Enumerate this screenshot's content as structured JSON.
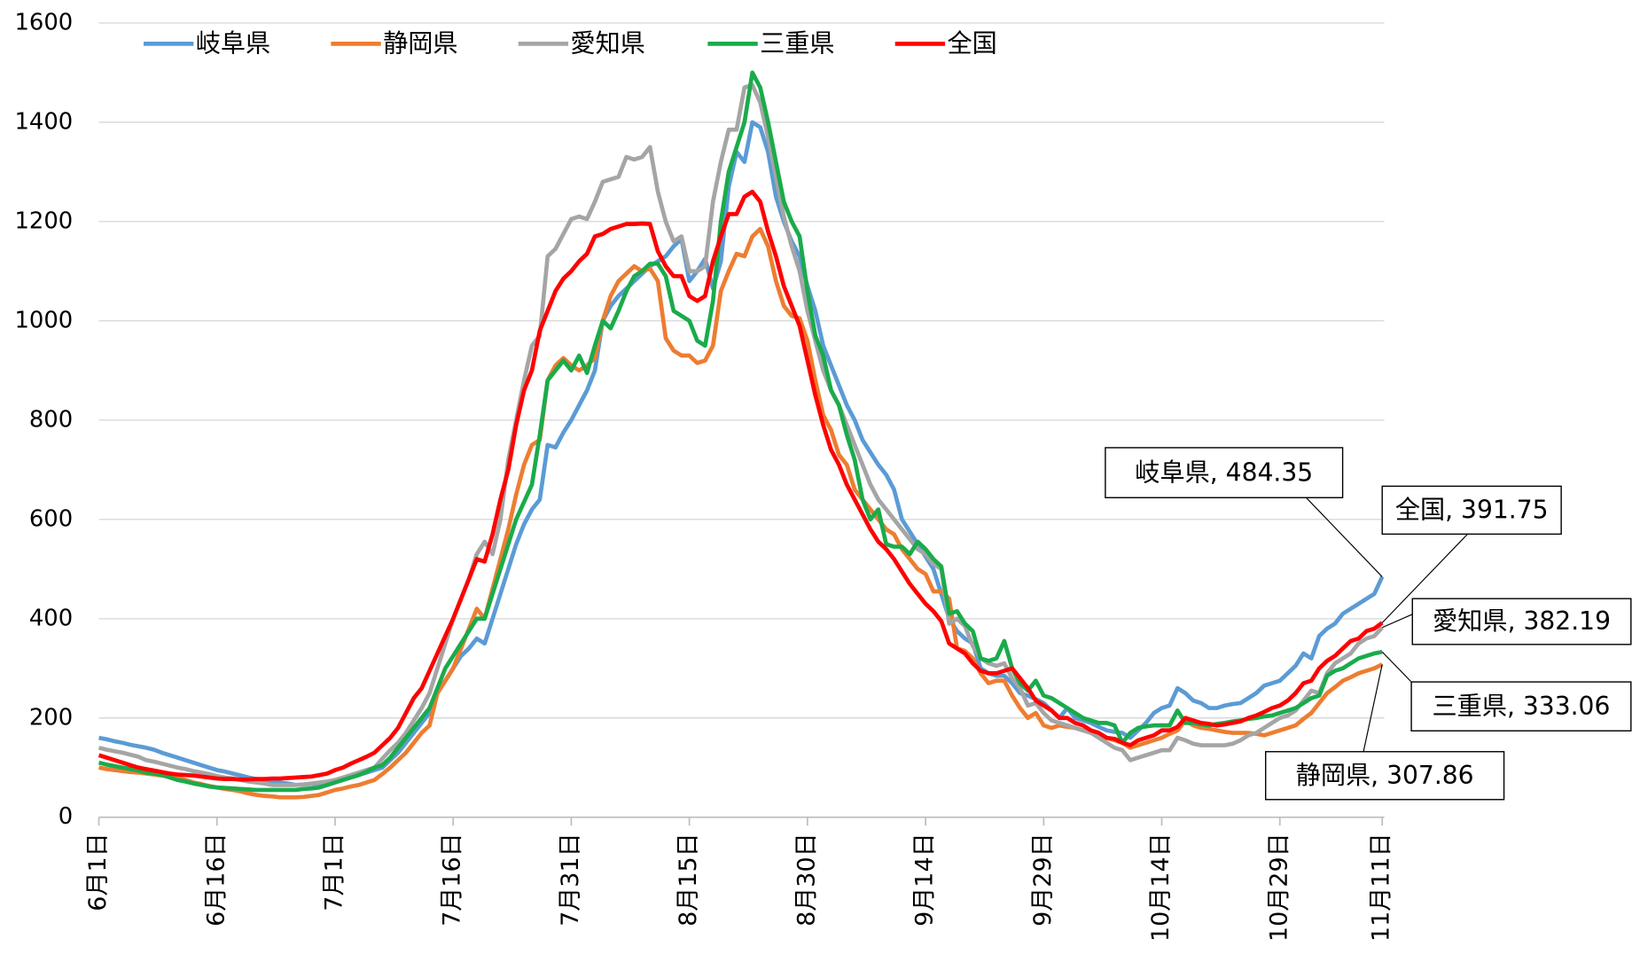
{
  "chart_data": {
    "type": "line",
    "categories": [
      "6月1日",
      null,
      null,
      null,
      null,
      null,
      null,
      null,
      null,
      null,
      null,
      null,
      null,
      null,
      null,
      "6月16日",
      null,
      null,
      null,
      null,
      null,
      null,
      null,
      null,
      null,
      null,
      null,
      null,
      null,
      null,
      "7月1日",
      null,
      null,
      null,
      null,
      null,
      null,
      null,
      null,
      null,
      null,
      null,
      null,
      null,
      null,
      "7月16日",
      null,
      null,
      null,
      null,
      null,
      null,
      null,
      null,
      null,
      null,
      null,
      null,
      null,
      null,
      "7月31日",
      null,
      null,
      null,
      null,
      null,
      null,
      null,
      null,
      null,
      null,
      null,
      null,
      null,
      null,
      "8月15日",
      null,
      null,
      null,
      null,
      null,
      null,
      null,
      null,
      null,
      null,
      null,
      null,
      null,
      null,
      "8月30日",
      null,
      null,
      null,
      null,
      null,
      null,
      null,
      null,
      null,
      null,
      null,
      null,
      null,
      null,
      "9月14日",
      null,
      null,
      null,
      null,
      null,
      null,
      null,
      null,
      null,
      null,
      null,
      null,
      null,
      null,
      "9月29日",
      null,
      null,
      null,
      null,
      null,
      null,
      null,
      null,
      null,
      null,
      null,
      null,
      null,
      null,
      "10月14日",
      null,
      null,
      null,
      null,
      null,
      null,
      null,
      null,
      null,
      null,
      null,
      null,
      null,
      null,
      "10月29日",
      null,
      null,
      null,
      null,
      null,
      null,
      null,
      null,
      null,
      null,
      null,
      null,
      "11月11日"
    ],
    "series": [
      {
        "name": "岐阜県",
        "color": "#5b9bd5",
        "values": [
          160,
          157,
          153,
          150,
          146,
          143,
          140,
          136,
          130,
          125,
          120,
          115,
          110,
          105,
          100,
          95,
          92,
          88,
          84,
          80,
          77,
          74,
          72,
          70,
          68,
          65,
          66,
          67,
          68,
          70,
          72,
          76,
          80,
          85,
          90,
          95,
          100,
          115,
          130,
          150,
          170,
          190,
          210,
          250,
          275,
          300,
          325,
          340,
          360,
          350,
          400,
          450,
          500,
          550,
          590,
          620,
          640,
          750,
          745,
          775,
          800,
          830,
          860,
          900,
          1000,
          1030,
          1050,
          1065,
          1080,
          1095,
          1110,
          1120,
          1130,
          1150,
          1165,
          1080,
          1100,
          1125,
          1065,
          1120,
          1270,
          1340,
          1320,
          1400,
          1390,
          1340,
          1250,
          1200,
          1160,
          1130,
          1070,
          1020,
          950,
          910,
          870,
          830,
          800,
          760,
          735,
          710,
          690,
          660,
          600,
          575,
          550,
          525,
          500,
          450,
          400,
          375,
          360,
          350,
          300,
          290,
          285,
          285,
          270,
          250,
          245,
          238,
          230,
          215,
          200,
          220,
          200,
          195,
          190,
          182,
          175,
          172,
          170,
          160,
          175,
          190,
          210,
          220,
          225,
          260,
          250,
          235,
          230,
          220,
          220,
          225,
          228,
          230,
          240,
          250,
          265,
          270,
          275,
          290,
          305,
          330,
          320,
          365,
          380,
          390,
          410,
          420,
          430,
          440,
          450,
          484.35
        ]
      },
      {
        "name": "静岡県",
        "color": "#ed7d31",
        "values": [
          100,
          97,
          95,
          93,
          91,
          90,
          88,
          86,
          84,
          82,
          80,
          75,
          70,
          67,
          63,
          60,
          57,
          55,
          52,
          48,
          45,
          43,
          42,
          40,
          40,
          40,
          41,
          43,
          45,
          50,
          55,
          58,
          62,
          65,
          70,
          75,
          87,
          100,
          115,
          130,
          150,
          170,
          185,
          250,
          275,
          300,
          340,
          380,
          420,
          400,
          460,
          520,
          580,
          650,
          710,
          750,
          760,
          880,
          910,
          925,
          910,
          900,
          910,
          925,
          1000,
          1050,
          1080,
          1095,
          1110,
          1100,
          1105,
          1080,
          965,
          940,
          930,
          930,
          915,
          920,
          950,
          1060,
          1100,
          1135,
          1130,
          1170,
          1185,
          1150,
          1080,
          1030,
          1010,
          1005,
          960,
          880,
          810,
          780,
          730,
          710,
          660,
          640,
          620,
          600,
          580,
          570,
          540,
          520,
          500,
          490,
          455,
          455,
          440,
          340,
          335,
          320,
          290,
          270,
          275,
          275,
          245,
          220,
          200,
          210,
          185,
          180,
          185,
          182,
          180,
          175,
          170,
          165,
          160,
          155,
          150,
          140,
          145,
          150,
          155,
          160,
          168,
          175,
          195,
          185,
          180,
          178,
          175,
          172,
          170,
          170,
          170,
          168,
          165,
          170,
          175,
          180,
          185,
          198,
          210,
          230,
          250,
          262,
          275,
          282,
          290,
          295,
          300,
          307.86
        ]
      },
      {
        "name": "愛知県",
        "color": "#a5a5a5",
        "values": [
          140,
          136,
          133,
          130,
          126,
          122,
          115,
          112,
          108,
          104,
          100,
          97,
          93,
          90,
          87,
          83,
          80,
          78,
          75,
          72,
          70,
          68,
          65,
          65,
          65,
          65,
          66,
          68,
          70,
          72,
          75,
          80,
          85,
          90,
          95,
          100,
          118,
          135,
          150,
          170,
          195,
          220,
          250,
          300,
          350,
          400,
          440,
          480,
          530,
          555,
          530,
          600,
          720,
          800,
          880,
          950,
          970,
          1130,
          1145,
          1175,
          1205,
          1210,
          1205,
          1240,
          1280,
          1285,
          1290,
          1330,
          1325,
          1330,
          1350,
          1260,
          1200,
          1160,
          1170,
          1100,
          1100,
          1110,
          1240,
          1320,
          1385,
          1385,
          1470,
          1475,
          1440,
          1370,
          1290,
          1210,
          1150,
          1100,
          1020,
          960,
          900,
          860,
          830,
          790,
          750,
          710,
          670,
          640,
          620,
          600,
          580,
          560,
          540,
          530,
          510,
          500,
          390,
          400,
          385,
          345,
          320,
          310,
          305,
          310,
          280,
          260,
          225,
          230,
          210,
          195,
          190,
          185,
          180,
          175,
          170,
          160,
          150,
          140,
          135,
          115,
          120,
          125,
          130,
          135,
          135,
          160,
          155,
          148,
          145,
          145,
          145,
          145,
          148,
          155,
          165,
          170,
          180,
          190,
          200,
          205,
          215,
          235,
          255,
          250,
          290,
          310,
          320,
          330,
          350,
          360,
          365,
          382.19
        ]
      },
      {
        "name": "三重県",
        "color": "#1aab4b",
        "values": [
          110,
          106,
          103,
          100,
          97,
          94,
          90,
          88,
          85,
          80,
          75,
          72,
          68,
          65,
          62,
          60,
          59,
          58,
          57,
          56,
          55,
          55,
          55,
          55,
          55,
          55,
          57,
          58,
          60,
          65,
          70,
          75,
          80,
          85,
          92,
          100,
          105,
          120,
          140,
          160,
          180,
          200,
          220,
          260,
          300,
          325,
          350,
          375,
          400,
          400,
          450,
          500,
          550,
          600,
          635,
          670,
          770,
          880,
          900,
          920,
          900,
          930,
          895,
          950,
          1000,
          985,
          1020,
          1060,
          1090,
          1100,
          1115,
          1115,
          1090,
          1020,
          1010,
          1000,
          960,
          950,
          1040,
          1200,
          1300,
          1350,
          1400,
          1500,
          1470,
          1400,
          1320,
          1240,
          1200,
          1170,
          1060,
          970,
          930,
          860,
          830,
          770,
          720,
          640,
          600,
          620,
          550,
          545,
          545,
          530,
          555,
          540,
          520,
          505,
          410,
          415,
          390,
          375,
          320,
          315,
          320,
          355,
          300,
          270,
          255,
          275,
          245,
          240,
          230,
          220,
          210,
          200,
          195,
          190,
          190,
          185,
          150,
          170,
          180,
          183,
          185,
          185,
          185,
          215,
          190,
          190,
          187,
          185,
          188,
          190,
          193,
          195,
          198,
          200,
          203,
          205,
          210,
          215,
          220,
          230,
          240,
          245,
          285,
          295,
          300,
          310,
          320,
          325,
          330,
          333.06
        ]
      },
      {
        "name": "全国",
        "color": "#ff0000",
        "values": [
          125,
          120,
          115,
          110,
          105,
          100,
          97,
          94,
          91,
          88,
          86,
          85,
          84,
          82,
          80,
          78,
          77,
          77,
          76,
          76,
          77,
          77,
          78,
          78,
          79,
          80,
          81,
          82,
          85,
          88,
          95,
          100,
          108,
          115,
          122,
          130,
          145,
          160,
          180,
          210,
          240,
          260,
          295,
          330,
          365,
          400,
          440,
          480,
          520,
          515,
          570,
          640,
          700,
          790,
          860,
          900,
          980,
          1020,
          1060,
          1085,
          1100,
          1120,
          1135,
          1170,
          1175,
          1185,
          1190,
          1195,
          1195,
          1196,
          1195,
          1140,
          1110,
          1090,
          1090,
          1050,
          1040,
          1050,
          1120,
          1170,
          1215,
          1215,
          1250,
          1260,
          1240,
          1180,
          1130,
          1070,
          1030,
          990,
          920,
          850,
          790,
          740,
          710,
          670,
          640,
          610,
          580,
          555,
          540,
          520,
          495,
          470,
          450,
          430,
          415,
          395,
          350,
          340,
          330,
          310,
          295,
          290,
          290,
          295,
          300,
          280,
          260,
          235,
          225,
          215,
          200,
          200,
          190,
          185,
          175,
          170,
          160,
          158,
          150,
          145,
          155,
          160,
          165,
          175,
          175,
          182,
          200,
          195,
          190,
          188,
          185,
          187,
          190,
          193,
          200,
          205,
          212,
          220,
          225,
          235,
          250,
          270,
          275,
          300,
          315,
          325,
          340,
          355,
          360,
          375,
          380,
          391.75
        ]
      }
    ],
    "annotations": [
      "岐阜県, 484.35",
      "静岡県, 307.86",
      "愛知県, 382.19",
      "三重県, 333.06",
      "全国, 391.75"
    ],
    "ylim": [
      0,
      1600
    ],
    "yticks": [
      0,
      200,
      400,
      600,
      800,
      1000,
      1200,
      1400,
      1600
    ],
    "grid": true,
    "legend": "top"
  }
}
